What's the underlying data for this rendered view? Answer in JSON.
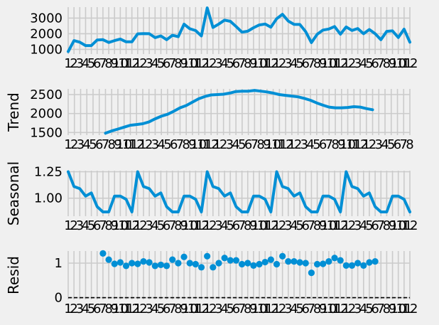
{
  "chart_data": [
    {
      "type": "line",
      "name": "observed",
      "ylabel": "",
      "yticks": [
        1000,
        2000,
        3000
      ],
      "ylim": [
        700,
        3700
      ],
      "x_tick_labels": [
        "1",
        "2",
        "3",
        "4",
        "5",
        "6",
        "7",
        "8",
        "9",
        "10",
        "11",
        "12"
      ],
      "values": [
        860,
        1560,
        1460,
        1240,
        1240,
        1600,
        1620,
        1440,
        1560,
        1660,
        1480,
        1480,
        1990,
        2010,
        2000,
        1750,
        1860,
        1620,
        1900,
        1810,
        2610,
        2320,
        2200,
        1860,
        3650,
        2400,
        2620,
        2870,
        2790,
        2460,
        2100,
        2160,
        2380,
        2560,
        2620,
        2420,
        2960,
        3240,
        2810,
        2600,
        2590,
        2130,
        1430,
        1970,
        2230,
        2300,
        2460,
        1970,
        2430,
        2210,
        2330,
        2000,
        2270,
        2000,
        1620,
        2150,
        2180,
        1760,
        2290,
        1460
      ]
    },
    {
      "type": "line",
      "name": "trend",
      "ylabel": "Trend",
      "yticks": [
        1500,
        2000,
        2500
      ],
      "ylim": [
        1430,
        2650
      ],
      "x_tick_labels": [
        "1",
        "2",
        "3",
        "4",
        "5",
        "6",
        "7",
        "8",
        "9",
        "10",
        "11",
        "12"
      ],
      "values": [
        null,
        null,
        null,
        null,
        null,
        null,
        1480,
        1540,
        1590,
        1640,
        1690,
        1710,
        1730,
        1780,
        1860,
        1930,
        1980,
        2060,
        2150,
        2210,
        2300,
        2390,
        2450,
        2490,
        2500,
        2510,
        2540,
        2580,
        2590,
        2590,
        2610,
        2590,
        2570,
        2540,
        2500,
        2480,
        2460,
        2440,
        2400,
        2350,
        2280,
        2220,
        2170,
        2150,
        2150,
        2160,
        2180,
        2170,
        2130,
        2100,
        null,
        null,
        null,
        null,
        null,
        null
      ]
    },
    {
      "type": "line",
      "name": "seasonal",
      "ylabel": "Seasonal",
      "yticks": [
        1.0,
        1.25
      ],
      "ylim": [
        0.83,
        1.26
      ],
      "yticks_labels": [
        "1.00",
        "1.25"
      ],
      "x_tick_labels": [
        "1",
        "2",
        "3",
        "4",
        "5",
        "6",
        "7",
        "8",
        "9",
        "10",
        "11",
        "12"
      ],
      "values": [
        1.25,
        1.11,
        1.09,
        1.02,
        1.05,
        0.92,
        0.87,
        0.87,
        1.02,
        1.02,
        0.99,
        0.87,
        1.25,
        1.11,
        1.09,
        1.02,
        1.05,
        0.92,
        0.87,
        0.87,
        1.02,
        1.02,
        0.99,
        0.87,
        1.25,
        1.11,
        1.09,
        1.02,
        1.05,
        0.92,
        0.87,
        0.87,
        1.02,
        1.02,
        0.99,
        0.87,
        1.25,
        1.11,
        1.09,
        1.02,
        1.05,
        0.92,
        0.87,
        0.87,
        1.02,
        1.02,
        0.99,
        0.87,
        1.25,
        1.11,
        1.09,
        1.02,
        1.05,
        0.92,
        0.87,
        0.87,
        1.02,
        1.02,
        0.99,
        0.87
      ]
    },
    {
      "type": "scatter",
      "name": "resid",
      "ylabel": "Resid",
      "yticks": [
        0,
        1
      ],
      "ylim": [
        -0.05,
        1.35
      ],
      "zero_line": 0,
      "x_tick_labels": [
        "1",
        "2",
        "3",
        "4",
        "5",
        "6",
        "7",
        "8",
        "9",
        "10",
        "11",
        "12"
      ],
      "values": [
        null,
        null,
        null,
        null,
        null,
        null,
        1.28,
        1.1,
        0.98,
        1.02,
        0.92,
        1.0,
        0.98,
        1.05,
        1.02,
        0.92,
        0.95,
        0.92,
        1.1,
        1.0,
        1.18,
        1.0,
        0.97,
        0.88,
        1.2,
        0.88,
        1.0,
        1.15,
        1.08,
        1.08,
        0.97,
        1.0,
        0.93,
        0.97,
        1.03,
        1.1,
        0.97,
        1.2,
        1.05,
        1.05,
        1.02,
        1.0,
        0.72,
        0.97,
        0.98,
        1.05,
        1.15,
        1.08,
        0.93,
        0.93,
        1.0,
        0.93,
        1.02,
        1.05,
        null,
        null,
        null,
        null,
        null,
        null
      ]
    }
  ]
}
